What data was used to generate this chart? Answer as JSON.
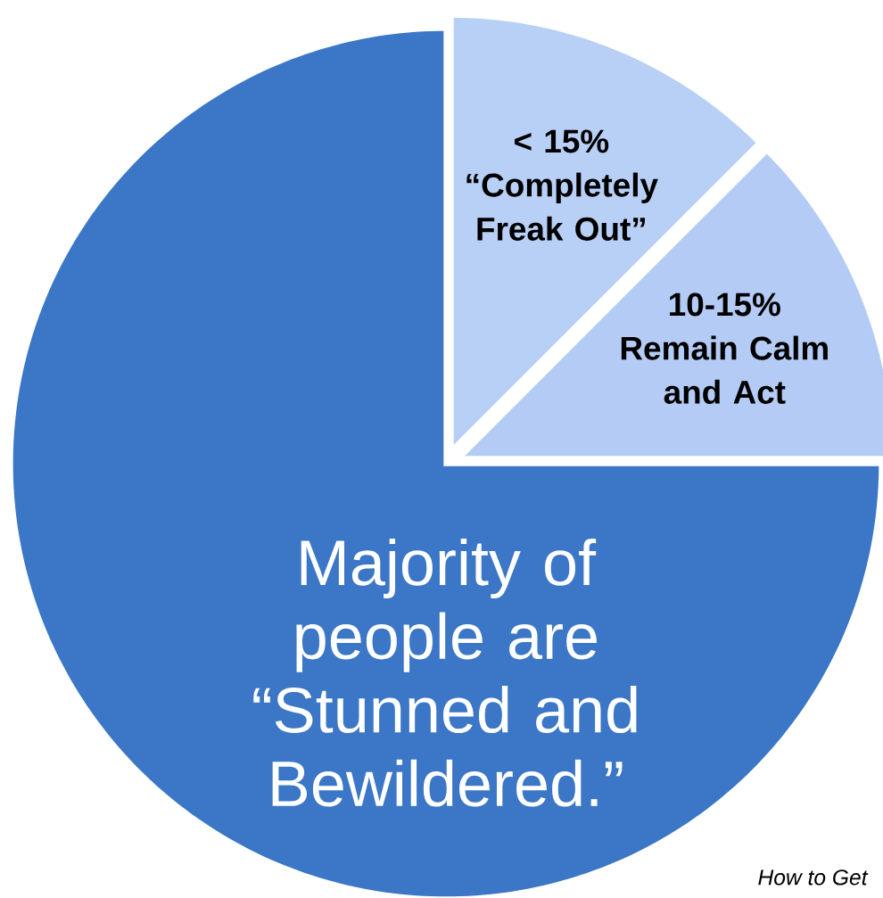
{
  "chart_data": {
    "type": "pie",
    "categories": [
      "< 15% “Completely Freak Out”",
      "10-15% Remain Calm and Act",
      "Majority of people are “Stunned and Bewildered.”"
    ],
    "values": [
      12.5,
      12.5,
      75
    ],
    "colors": [
      "#b8cff6",
      "#b4ccf5",
      "#3b77c6"
    ],
    "annotations": [
      "How to Get"
    ]
  }
}
